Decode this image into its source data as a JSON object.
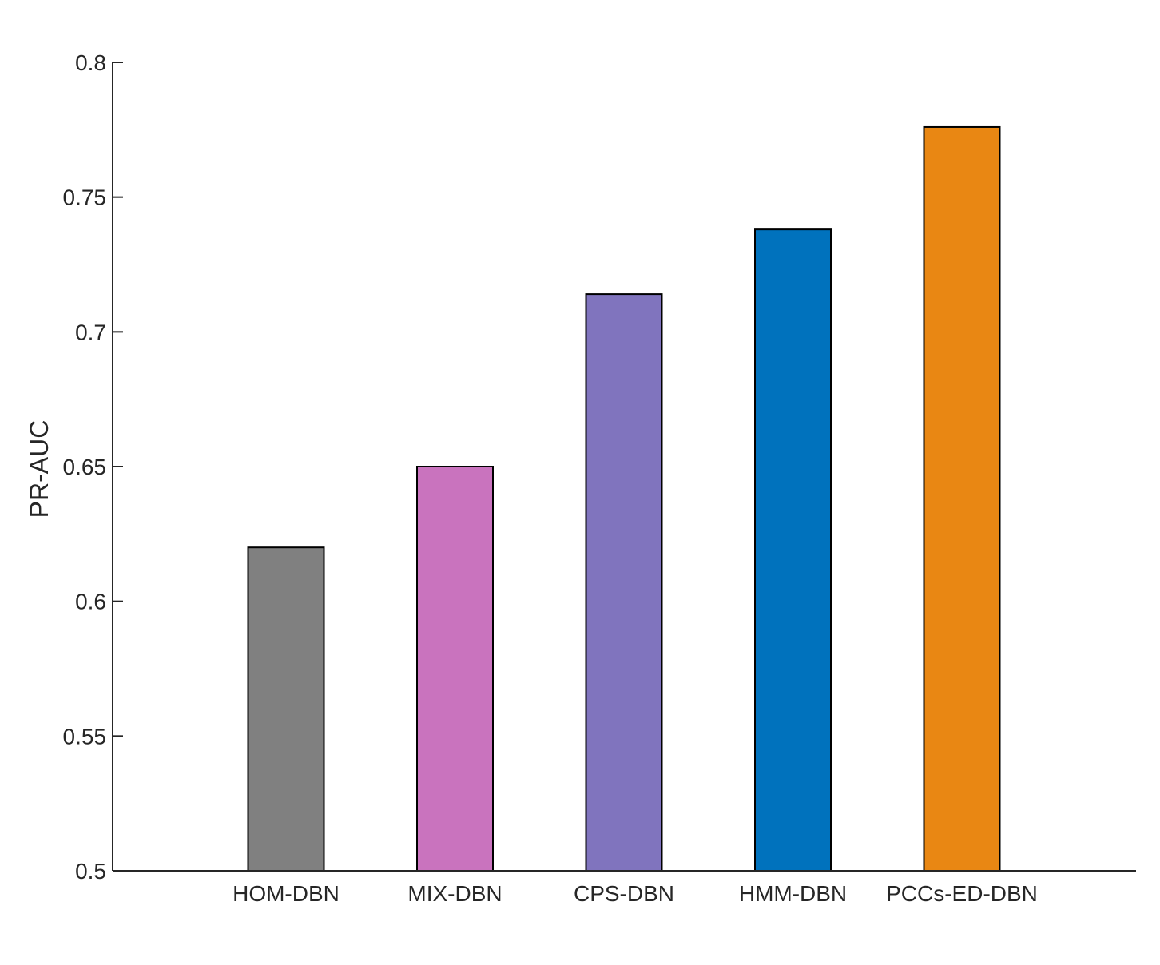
{
  "chart_data": {
    "type": "bar",
    "categories": [
      "HOM-DBN",
      "MIX-DBN",
      "CPS-DBN",
      "HMM-DBN",
      "PCCs-ED-DBN"
    ],
    "values": [
      0.62,
      0.65,
      0.714,
      0.738,
      0.776
    ],
    "colors": [
      "#808080",
      "#C973BE",
      "#8074BE",
      "#0072BD",
      "#E98713"
    ],
    "title": "",
    "xlabel": "",
    "ylabel": "PR-AUC",
    "ylim": [
      0.5,
      0.8
    ],
    "yticks": [
      0.5,
      0.55,
      0.6,
      0.65,
      0.7,
      0.75,
      0.8
    ],
    "ytick_labels": [
      "0.5",
      "0.55",
      "0.6",
      "0.65",
      "0.7",
      "0.75",
      "0.8"
    ],
    "grid": false,
    "legend": false
  }
}
